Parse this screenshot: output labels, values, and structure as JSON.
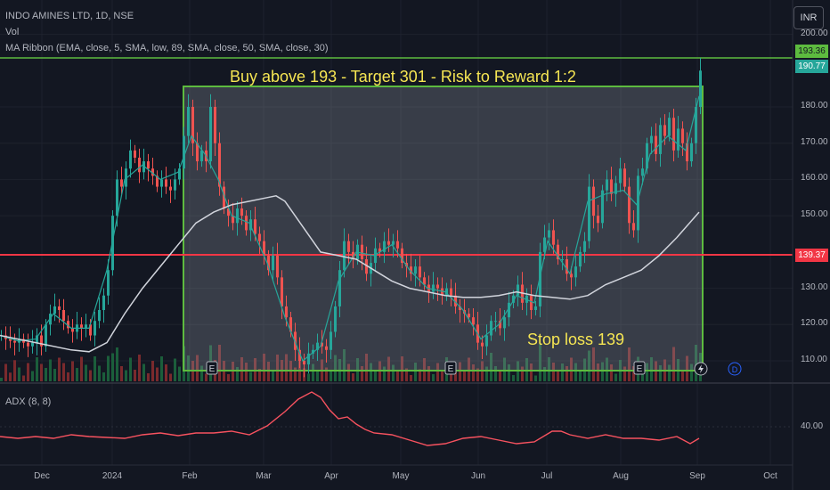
{
  "header": {
    "symbol": "INDO AMINES LTD, 1D, NSE",
    "vol_label": "Vol",
    "ribbon_label": "MA Ribbon (EMA, close, 5, SMA, low, 89, SMA, close, 50, SMA, close, 30)",
    "currency": "INR",
    "adx_label": "ADX (8, 8)"
  },
  "annotations": {
    "headline": "Buy above 193 - Target 301 - Risk to Reward 1:2",
    "stop_loss": "Stop loss 139"
  },
  "price_labels": {
    "upper_2": "193.36",
    "upper_1": "190.77",
    "red_line": "139.37"
  },
  "event_markers": [
    "E",
    "E",
    "E"
  ],
  "colors": {
    "background": "#131722",
    "up_candle": "#26a69a",
    "down_candle": "#ef5350",
    "box_border": "#5dbb3f",
    "red_line": "#f23645",
    "ma_white": "#d1d4dc",
    "adx_line": "#f7525f",
    "annotation_text": "#f6e653"
  },
  "chart_data": {
    "type": "candlestick",
    "y_axis": {
      "ticks": [
        {
          "label": "200.00",
          "value": 200
        },
        {
          "label": "180.00",
          "value": 180
        },
        {
          "label": "170.00",
          "value": 170
        },
        {
          "label": "160.00",
          "value": 160
        },
        {
          "label": "150.00",
          "value": 150
        },
        {
          "label": "130.00",
          "value": 130
        },
        {
          "label": "120.00",
          "value": 120
        },
        {
          "label": "110.00",
          "value": 110
        }
      ],
      "range": [
        105,
        200
      ]
    },
    "x_axis": {
      "ticks": [
        "Dec",
        "2024",
        "Feb",
        "Mar",
        "Apr",
        "May",
        "Jun",
        "Jul",
        "Aug",
        "Sep",
        "Oct"
      ]
    },
    "levels": [
      {
        "name": "Buy above",
        "value": 193
      },
      {
        "name": "Stop loss",
        "value": 139.37
      }
    ],
    "box": {
      "from": "Feb",
      "to": "Sep",
      "price_low": 107,
      "price_high": 190
    },
    "close_series": [
      [
        0,
        117
      ],
      [
        5,
        116
      ],
      [
        10,
        115.5
      ],
      [
        15,
        115
      ],
      [
        20,
        116
      ],
      [
        25,
        115
      ],
      [
        30,
        114
      ],
      [
        35,
        115
      ],
      [
        40,
        117
      ],
      [
        45,
        114
      ],
      [
        50,
        120
      ],
      [
        55,
        123
      ],
      [
        60,
        125
      ],
      [
        65,
        124
      ],
      [
        70,
        121
      ],
      [
        75,
        119
      ],
      [
        80,
        118
      ],
      [
        85,
        120
      ],
      [
        90,
        119
      ],
      [
        95,
        120
      ],
      [
        100,
        117
      ],
      [
        105,
        121
      ],
      [
        110,
        124
      ],
      [
        115,
        128
      ],
      [
        120,
        135
      ],
      [
        125,
        150
      ],
      [
        130,
        160
      ],
      [
        135,
        158
      ],
      [
        140,
        163
      ],
      [
        145,
        168
      ],
      [
        150,
        166
      ],
      [
        155,
        162
      ],
      [
        160,
        165
      ],
      [
        165,
        163
      ],
      [
        170,
        161
      ],
      [
        175,
        158
      ],
      [
        180,
        160
      ],
      [
        185,
        158
      ],
      [
        190,
        157
      ],
      [
        195,
        160
      ],
      [
        200,
        163
      ],
      [
        205,
        172
      ],
      [
        210,
        180
      ],
      [
        215,
        170
      ],
      [
        220,
        165
      ],
      [
        225,
        168
      ],
      [
        230,
        165
      ],
      [
        235,
        180
      ],
      [
        240,
        170
      ],
      [
        245,
        158
      ],
      [
        250,
        152
      ],
      [
        255,
        150
      ],
      [
        260,
        148
      ],
      [
        265,
        152
      ],
      [
        270,
        150
      ],
      [
        275,
        146
      ],
      [
        280,
        149
      ],
      [
        285,
        145
      ],
      [
        290,
        143
      ],
      [
        295,
        139
      ],
      [
        300,
        135
      ],
      [
        305,
        139
      ],
      [
        310,
        133
      ],
      [
        315,
        125
      ],
      [
        320,
        122
      ],
      [
        325,
        118
      ],
      [
        330,
        113
      ],
      [
        335,
        110
      ],
      [
        340,
        109
      ],
      [
        345,
        112
      ],
      [
        350,
        113
      ],
      [
        355,
        115
      ],
      [
        360,
        114
      ],
      [
        365,
        113
      ],
      [
        370,
        118
      ],
      [
        375,
        125
      ],
      [
        380,
        135
      ],
      [
        385,
        143
      ],
      [
        390,
        140
      ],
      [
        395,
        138
      ],
      [
        400,
        142
      ],
      [
        405,
        138
      ],
      [
        410,
        134
      ],
      [
        415,
        137
      ],
      [
        420,
        141
      ],
      [
        425,
        140
      ],
      [
        430,
        143
      ],
      [
        435,
        142
      ],
      [
        440,
        143
      ],
      [
        445,
        141
      ],
      [
        450,
        137
      ],
      [
        455,
        136
      ],
      [
        460,
        134
      ],
      [
        465,
        136
      ],
      [
        470,
        133
      ],
      [
        475,
        131
      ],
      [
        480,
        129
      ],
      [
        485,
        131
      ],
      [
        490,
        130
      ],
      [
        495,
        128
      ],
      [
        500,
        130
      ],
      [
        505,
        128
      ],
      [
        510,
        125
      ],
      [
        515,
        124
      ],
      [
        520,
        123
      ],
      [
        525,
        122
      ],
      [
        530,
        120
      ],
      [
        535,
        115
      ],
      [
        540,
        114
      ],
      [
        545,
        117
      ],
      [
        550,
        121
      ],
      [
        555,
        121
      ],
      [
        560,
        119
      ],
      [
        565,
        122
      ],
      [
        570,
        126
      ],
      [
        575,
        128
      ],
      [
        580,
        131
      ],
      [
        585,
        126
      ],
      [
        590,
        128
      ],
      [
        595,
        124
      ],
      [
        600,
        125
      ],
      [
        605,
        140
      ],
      [
        610,
        144
      ],
      [
        615,
        146
      ],
      [
        620,
        142
      ],
      [
        625,
        138
      ],
      [
        630,
        138
      ],
      [
        635,
        134
      ],
      [
        640,
        133
      ],
      [
        645,
        136
      ],
      [
        650,
        140
      ],
      [
        655,
        143
      ],
      [
        660,
        158
      ],
      [
        665,
        150
      ],
      [
        670,
        148
      ],
      [
        675,
        157
      ],
      [
        680,
        160
      ],
      [
        685,
        156
      ],
      [
        690,
        159
      ],
      [
        695,
        163
      ],
      [
        700,
        158
      ],
      [
        705,
        148
      ],
      [
        710,
        146
      ],
      [
        715,
        161
      ],
      [
        720,
        163
      ],
      [
        725,
        170
      ],
      [
        730,
        172
      ],
      [
        735,
        167
      ],
      [
        740,
        175
      ],
      [
        745,
        172
      ],
      [
        750,
        177
      ],
      [
        755,
        168
      ],
      [
        760,
        174
      ],
      [
        765,
        170
      ],
      [
        770,
        165
      ],
      [
        775,
        170
      ],
      [
        780,
        180
      ],
      [
        785,
        190
      ]
    ],
    "ma_fast": [
      [
        0,
        117
      ],
      [
        20,
        115.5
      ],
      [
        40,
        116
      ],
      [
        60,
        123
      ],
      [
        80,
        119
      ],
      [
        100,
        119
      ],
      [
        120,
        135
      ],
      [
        140,
        160
      ],
      [
        160,
        164
      ],
      [
        180,
        160
      ],
      [
        200,
        162
      ],
      [
        215,
        172
      ],
      [
        230,
        167
      ],
      [
        245,
        160
      ],
      [
        260,
        150
      ],
      [
        280,
        148
      ],
      [
        300,
        137
      ],
      [
        320,
        122
      ],
      [
        340,
        110
      ],
      [
        360,
        114
      ],
      [
        380,
        132
      ],
      [
        400,
        140
      ],
      [
        420,
        139
      ],
      [
        440,
        142
      ],
      [
        460,
        135
      ],
      [
        480,
        130
      ],
      [
        500,
        129
      ],
      [
        520,
        124
      ],
      [
        540,
        116
      ],
      [
        560,
        120
      ],
      [
        580,
        128
      ],
      [
        600,
        126
      ],
      [
        615,
        143
      ],
      [
        640,
        134
      ],
      [
        660,
        154
      ],
      [
        680,
        156
      ],
      [
        700,
        157
      ],
      [
        715,
        153
      ],
      [
        730,
        167
      ],
      [
        750,
        172
      ],
      [
        770,
        168
      ],
      [
        785,
        183
      ]
    ],
    "ma_slow": [
      [
        0,
        117
      ],
      [
        40,
        115
      ],
      [
        80,
        113
      ],
      [
        100,
        112.5
      ],
      [
        120,
        115
      ],
      [
        140,
        123
      ],
      [
        160,
        130
      ],
      [
        180,
        136
      ],
      [
        200,
        142
      ],
      [
        220,
        148
      ],
      [
        240,
        151
      ],
      [
        260,
        153
      ],
      [
        280,
        154
      ],
      [
        300,
        155
      ],
      [
        310,
        155.5
      ],
      [
        320,
        154
      ],
      [
        340,
        147
      ],
      [
        360,
        140
      ],
      [
        380,
        139
      ],
      [
        400,
        138
      ],
      [
        420,
        135
      ],
      [
        440,
        132
      ],
      [
        460,
        130
      ],
      [
        480,
        129
      ],
      [
        500,
        128
      ],
      [
        520,
        127.5
      ],
      [
        540,
        127.5
      ],
      [
        560,
        128
      ],
      [
        580,
        129
      ],
      [
        600,
        128
      ],
      [
        620,
        127.5
      ],
      [
        640,
        127
      ],
      [
        660,
        128
      ],
      [
        680,
        131
      ],
      [
        700,
        133
      ],
      [
        720,
        135
      ],
      [
        740,
        139
      ],
      [
        760,
        144
      ],
      [
        785,
        151
      ]
    ],
    "adx": [
      [
        0,
        490
      ],
      [
        20,
        492
      ],
      [
        40,
        490
      ],
      [
        60,
        492
      ],
      [
        80,
        488
      ],
      [
        100,
        490
      ],
      [
        120,
        491
      ],
      [
        140,
        492
      ],
      [
        160,
        488
      ],
      [
        180,
        486
      ],
      [
        200,
        489
      ],
      [
        220,
        486
      ],
      [
        240,
        486
      ],
      [
        260,
        484
      ],
      [
        280,
        488
      ],
      [
        300,
        478
      ],
      [
        320,
        462
      ],
      [
        335,
        448
      ],
      [
        350,
        440
      ],
      [
        360,
        446
      ],
      [
        370,
        460
      ],
      [
        380,
        470
      ],
      [
        390,
        468
      ],
      [
        400,
        476
      ],
      [
        410,
        482
      ],
      [
        420,
        486
      ],
      [
        440,
        488
      ],
      [
        460,
        494
      ],
      [
        480,
        500
      ],
      [
        500,
        498
      ],
      [
        520,
        492
      ],
      [
        540,
        490
      ],
      [
        560,
        494
      ],
      [
        580,
        498
      ],
      [
        600,
        496
      ],
      [
        620,
        484
      ],
      [
        630,
        484
      ],
      [
        640,
        488
      ],
      [
        660,
        492
      ],
      [
        680,
        488
      ],
      [
        700,
        492
      ],
      [
        720,
        492
      ],
      [
        740,
        494
      ],
      [
        760,
        490
      ],
      [
        775,
        498
      ],
      [
        785,
        492
      ]
    ]
  }
}
